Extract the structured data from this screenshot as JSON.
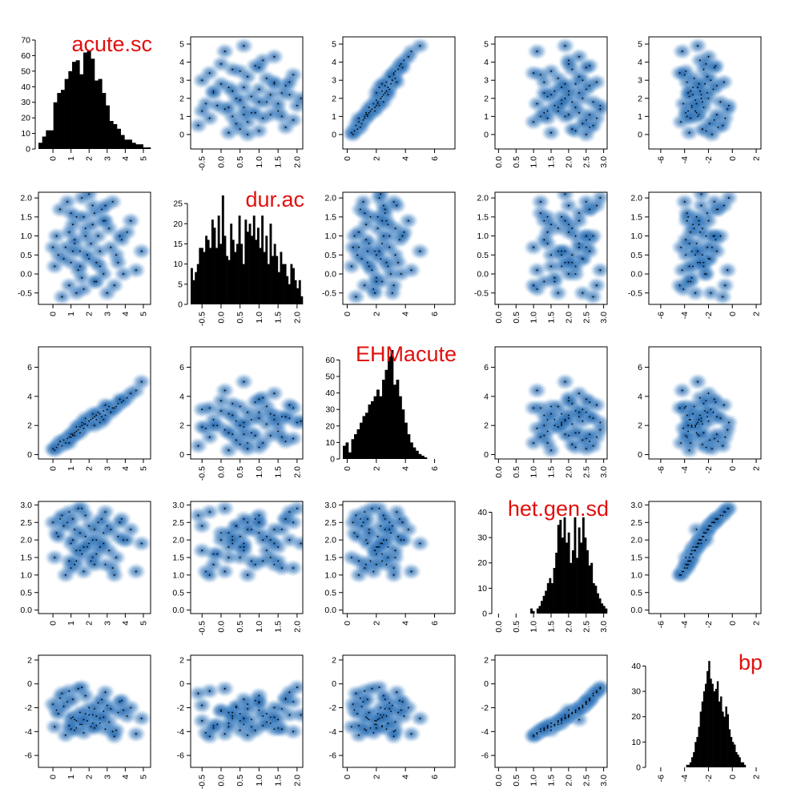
{
  "chart_data": {
    "type": "scatterplot_matrix",
    "diagonal": "histogram",
    "off_diagonal": "smoothed density scatter",
    "colors": {
      "density": "#1f5fa3",
      "points": "#000000",
      "bars": "#000000",
      "labels": "#e0100e"
    },
    "variables": [
      {
        "name": "acute.sc",
        "range": [
          -0.8,
          5.4
        ],
        "ticks": [
          "0",
          "1",
          "2",
          "3",
          "4",
          "5"
        ],
        "hist_ymax": 70,
        "hist_yticks": [
          "0",
          "10",
          "20",
          "30",
          "40",
          "50",
          "60",
          "70"
        ],
        "hist_xrange": [
          -0.8,
          5.4
        ],
        "hist_counts": [
          4,
          8,
          12,
          12,
          30,
          36,
          38,
          45,
          50,
          56,
          57,
          48,
          62,
          63,
          58,
          44,
          45,
          36,
          28,
          18,
          16,
          13,
          9,
          6,
          6,
          4,
          3,
          3,
          1,
          1
        ]
      },
      {
        "name": "dur.ac",
        "range": [
          -0.8,
          2.15
        ],
        "ticks": [
          "-0.5",
          "0.0",
          "0.5",
          "1.0",
          "1.5",
          "2.0"
        ],
        "hist_ymax": 27,
        "hist_yticks": [
          "0",
          "5",
          "10",
          "15",
          "20",
          "25"
        ],
        "hist_xrange": [
          -0.8,
          2.15
        ],
        "hist_counts": [
          9,
          6,
          8,
          10,
          14,
          14,
          13,
          17,
          16,
          14,
          21,
          19,
          14,
          22,
          15,
          27,
          17,
          12,
          11,
          20,
          16,
          13,
          15,
          22,
          15,
          10,
          21,
          18,
          20,
          17,
          22,
          16,
          19,
          14,
          22,
          13,
          17,
          10,
          20,
          12,
          15,
          12,
          8,
          13,
          10,
          10,
          7,
          5,
          10,
          9,
          6,
          4,
          6,
          2
        ]
      },
      {
        "name": "EHMacute",
        "range": [
          -0.3,
          7.4
        ],
        "ticks": [
          "0",
          "2",
          "4",
          "6"
        ],
        "hist_ymax": 66,
        "hist_yticks": [
          "0",
          "10",
          "20",
          "30",
          "40",
          "50",
          "60"
        ],
        "hist_xrange": [
          -0.3,
          7.4
        ],
        "hist_counts": [
          8,
          10,
          4,
          12,
          15,
          18,
          22,
          26,
          28,
          33,
          35,
          38,
          42,
          38,
          48,
          54,
          62,
          66,
          45,
          48,
          38,
          30,
          22,
          15,
          10,
          7,
          5,
          3,
          2,
          1,
          0,
          0,
          0,
          0,
          0,
          0,
          0,
          0,
          0,
          0
        ]
      },
      {
        "name": "het.gen.sd",
        "range": [
          -0.1,
          3.1
        ],
        "ticks": [
          "0.0",
          "0.5",
          "1.0",
          "1.5",
          "2.0",
          "2.5",
          "3.0"
        ],
        "hist_ymax": 43,
        "hist_yticks": [
          "0",
          "10",
          "20",
          "30",
          "40"
        ],
        "hist_xrange": [
          -0.1,
          3.1
        ],
        "hist_counts": [
          0,
          0,
          0,
          0,
          0,
          0,
          0,
          0,
          0,
          0,
          0,
          0,
          0,
          0,
          0,
          0,
          0,
          2,
          1,
          0,
          2,
          3,
          5,
          7,
          9,
          12,
          14,
          12,
          18,
          24,
          35,
          37,
          30,
          38,
          28,
          32,
          20,
          25,
          38,
          22,
          34,
          28,
          38,
          30,
          25,
          19,
          20,
          12,
          11,
          8,
          6,
          4,
          3,
          2
        ]
      },
      {
        "name": "bp",
        "range": [
          -7.0,
          2.4
        ],
        "ticks": [
          "-6",
          "-4",
          "-2",
          "0",
          "2"
        ],
        "hist_ymax": 43,
        "hist_yticks": [
          "0",
          "10",
          "20",
          "30",
          "40"
        ],
        "hist_xrange": [
          -7.0,
          2.4
        ],
        "hist_counts": [
          0,
          0,
          0,
          0,
          0,
          0,
          0,
          0,
          0,
          0,
          0,
          0,
          0,
          0,
          0,
          0,
          0,
          0,
          0,
          0,
          0,
          0,
          1,
          1,
          2,
          4,
          6,
          10,
          12,
          16,
          22,
          26,
          30,
          33,
          38,
          42,
          35,
          33,
          30,
          31,
          34,
          26,
          28,
          22,
          20,
          24,
          21,
          15,
          12,
          10,
          9,
          6,
          5,
          4,
          2,
          2,
          1,
          0,
          0,
          0,
          0,
          0,
          0,
          0,
          0,
          0
        ]
      }
    ],
    "scatter_points": [
      [
        1.2,
        0.8,
        1.5,
        2.3,
        -3.0
      ],
      [
        2.6,
        0.2,
        2.8,
        1.8,
        -3.3
      ],
      [
        0.4,
        1.7,
        0.9,
        2.6,
        -1.2
      ],
      [
        3.5,
        0.5,
        3.3,
        1.5,
        -3.9
      ],
      [
        1.8,
        1.2,
        2.1,
        2.1,
        -2.5
      ],
      [
        0.9,
        -0.3,
        1.2,
        2.8,
        -0.6
      ],
      [
        4.6,
        0.1,
        4.4,
        1.1,
        -4.2
      ],
      [
        2.2,
        1.8,
        2.5,
        2.0,
        -2.6
      ],
      [
        1.5,
        0.6,
        1.9,
        1.7,
        -3.4
      ],
      [
        3.0,
        -0.5,
        3.1,
        2.4,
        -1.8
      ],
      [
        0.2,
        1.0,
        0.5,
        2.2,
        -2.2
      ],
      [
        2.9,
        1.4,
        2.7,
        1.3,
        -3.8
      ],
      [
        1.0,
        0.3,
        1.4,
        1.9,
        -2.9
      ],
      [
        3.8,
        0.9,
        3.6,
        2.6,
        -1.4
      ],
      [
        2.4,
        -0.2,
        2.4,
        1.6,
        -3.5
      ],
      [
        1.6,
        2.0,
        2.2,
        2.9,
        -0.3
      ],
      [
        0.7,
        0.7,
        0.8,
        1.0,
        -4.3
      ],
      [
        4.1,
        1.1,
        3.9,
        2.0,
        -2.7
      ],
      [
        2.0,
        0.4,
        2.3,
        2.4,
        -2.0
      ],
      [
        1.3,
        1.5,
        1.6,
        1.4,
        -3.7
      ],
      [
        2.8,
        0.0,
        3.0,
        2.2,
        -2.3
      ],
      [
        0.5,
        -0.6,
        0.6,
        2.7,
        -0.8
      ],
      [
        3.3,
        1.9,
        3.2,
        1.2,
        -4.0
      ],
      [
        1.9,
        0.5,
        2.0,
        1.8,
        -3.1
      ],
      [
        2.5,
        1.0,
        2.9,
        2.5,
        -1.6
      ],
      [
        1.1,
        1.3,
        1.3,
        2.0,
        -2.8
      ],
      [
        4.9,
        0.6,
        5.0,
        1.9,
        -2.9
      ],
      [
        0.1,
        0.2,
        0.3,
        1.5,
        -3.6
      ],
      [
        2.3,
        1.6,
        2.6,
        2.3,
        -2.1
      ],
      [
        1.7,
        -0.4,
        1.8,
        1.1,
        -4.1
      ],
      [
        3.6,
        0.3,
        3.5,
        2.1,
        -2.4
      ],
      [
        0.8,
        1.9,
        1.1,
        2.5,
        -1.5
      ],
      [
        2.1,
        0.8,
        2.4,
        1.4,
        -3.6
      ],
      [
        1.4,
        0.1,
        1.7,
        2.9,
        -0.4
      ],
      [
        3.1,
        1.2,
        3.3,
        1.7,
        -3.2
      ],
      [
        0.3,
        0.5,
        0.7,
        2.1,
        -2.5
      ],
      [
        2.7,
        1.7,
        2.6,
        2.6,
        -1.3
      ],
      [
        1.6,
        -0.1,
        2.0,
        1.6,
        -3.4
      ],
      [
        4.3,
        1.4,
        4.2,
        2.3,
        -2.0
      ],
      [
        1.2,
        0.9,
        1.3,
        1.3,
        -3.9
      ],
      [
        2.0,
        2.1,
        2.3,
        1.9,
        -2.6
      ],
      [
        0.6,
        0.4,
        1.0,
        2.4,
        -1.9
      ],
      [
        3.4,
        -0.3,
        3.2,
        1.0,
        -4.4
      ],
      [
        1.8,
        1.0,
        2.5,
        2.7,
        -1.0
      ],
      [
        2.6,
        0.6,
        2.2,
        1.8,
        -2.9
      ],
      [
        1.0,
        1.6,
        1.2,
        1.2,
        -3.8
      ],
      [
        3.9,
        0.0,
        3.7,
        2.0,
        -2.2
      ],
      [
        0.0,
        0.7,
        0.4,
        2.5,
        -1.7
      ],
      [
        2.2,
        1.3,
        2.8,
        1.5,
        -3.3
      ],
      [
        1.5,
        0.2,
        1.5,
        2.2,
        -2.4
      ],
      [
        2.9,
        1.8,
        3.4,
        2.8,
        -0.7
      ],
      [
        1.3,
        -0.5,
        1.9,
        1.7,
        -3.1
      ],
      [
        3.2,
        0.7,
        2.9,
        2.3,
        -2.1
      ],
      [
        0.9,
        1.1,
        0.8,
        1.4,
        -3.5
      ],
      [
        2.4,
        0.3,
        2.7,
        2.0,
        -2.7
      ],
      [
        1.7,
        1.5,
        2.1,
        1.8,
        -3.0
      ],
      [
        3.7,
        1.0,
        3.8,
        2.5,
        -1.5
      ],
      [
        2.3,
        -0.2,
        2.0,
        1.3,
        -3.7
      ],
      [
        1.1,
        0.6,
        1.4,
        2.6,
        -1.3
      ],
      [
        2.8,
        1.4,
        2.4,
        1.9,
        -2.8
      ]
    ]
  }
}
